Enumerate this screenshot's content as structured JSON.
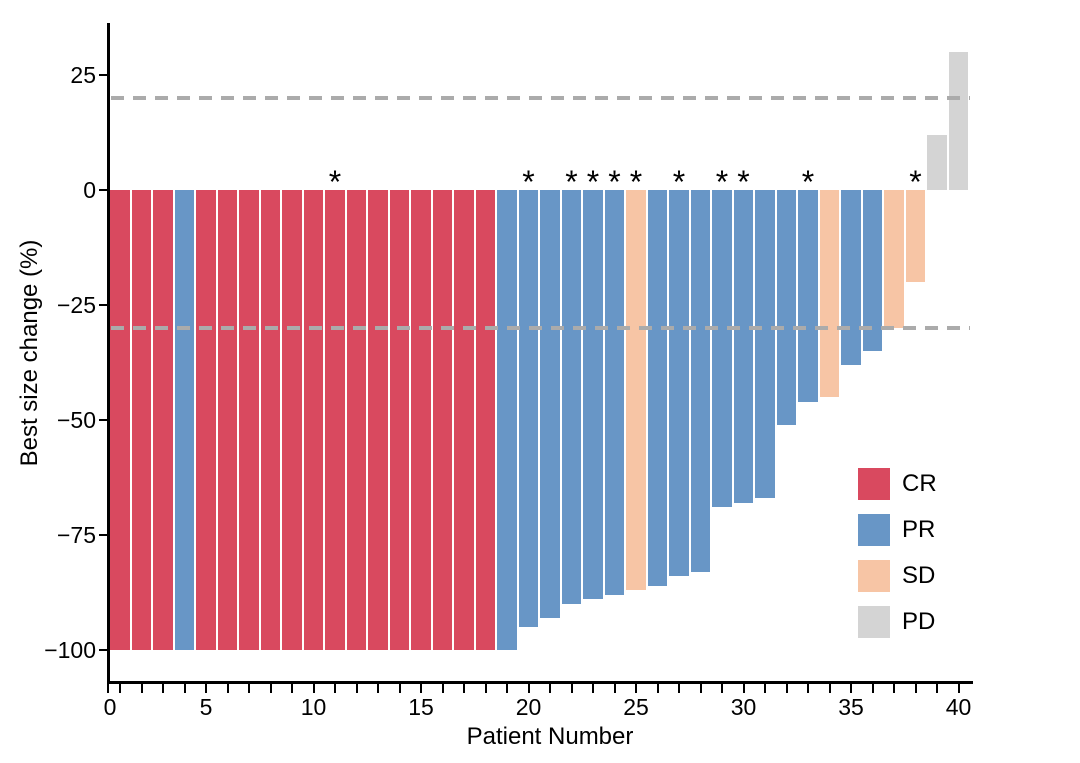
{
  "chart_data": {
    "type": "bar",
    "subtype": "waterfall",
    "title": "",
    "xlabel": "Patient Number",
    "ylabel": "Best size change (%)",
    "xlim": [
      0,
      40.5
    ],
    "ylim": [
      -107,
      36
    ],
    "grid": false,
    "legend_position": "right-middle",
    "y_ticks": [
      {
        "value": 25,
        "label": "25"
      },
      {
        "value": 0,
        "label": "0"
      },
      {
        "value": -25,
        "label": "−25"
      },
      {
        "value": -50,
        "label": "−50"
      },
      {
        "value": -75,
        "label": "−75"
      },
      {
        "value": -100,
        "label": "−100"
      }
    ],
    "x_major_ticks": [
      {
        "value": 0,
        "label": "0"
      },
      {
        "value": 5,
        "label": "5"
      },
      {
        "value": 10,
        "label": "10"
      },
      {
        "value": 15,
        "label": "15"
      },
      {
        "value": 20,
        "label": "20"
      },
      {
        "value": 25,
        "label": "25"
      },
      {
        "value": 30,
        "label": "30"
      },
      {
        "value": 35,
        "label": "35"
      },
      {
        "value": 40,
        "label": "40"
      }
    ],
    "x_minor_tick_step": 1,
    "reference_lines": [
      {
        "value": 20,
        "style": "dashed",
        "color": "#ABABAB"
      },
      {
        "value": -30,
        "style": "dashed",
        "color": "#ABABAB"
      }
    ],
    "legend": [
      {
        "key": "CR",
        "label": "CR",
        "color": "#D9495F"
      },
      {
        "key": "PR",
        "label": "PR",
        "color": "#6896C6"
      },
      {
        "key": "SD",
        "label": "SD",
        "color": "#F7C5A5"
      },
      {
        "key": "PD",
        "label": "PD",
        "color": "#D4D4D4"
      }
    ],
    "colors": {
      "CR": "#D9495F",
      "PR": "#6896C6",
      "SD": "#F7C5A5",
      "PD": "#D4D4D4",
      "reference_line": "#ABABAB",
      "axis": "#000000",
      "star_marker": "#000000"
    },
    "star_marker_glyph": "*",
    "patients": [
      {
        "id": 1,
        "change": -100,
        "response": "CR",
        "star": false
      },
      {
        "id": 2,
        "change": -100,
        "response": "CR",
        "star": false
      },
      {
        "id": 3,
        "change": -100,
        "response": "CR",
        "star": false
      },
      {
        "id": 4,
        "change": -100,
        "response": "PR",
        "star": false
      },
      {
        "id": 5,
        "change": -100,
        "response": "CR",
        "star": false
      },
      {
        "id": 6,
        "change": -100,
        "response": "CR",
        "star": false
      },
      {
        "id": 7,
        "change": -100,
        "response": "CR",
        "star": false
      },
      {
        "id": 8,
        "change": -100,
        "response": "CR",
        "star": false
      },
      {
        "id": 9,
        "change": -100,
        "response": "CR",
        "star": false
      },
      {
        "id": 10,
        "change": -100,
        "response": "CR",
        "star": false
      },
      {
        "id": 11,
        "change": -100,
        "response": "CR",
        "star": true
      },
      {
        "id": 12,
        "change": -100,
        "response": "CR",
        "star": false
      },
      {
        "id": 13,
        "change": -100,
        "response": "CR",
        "star": false
      },
      {
        "id": 14,
        "change": -100,
        "response": "CR",
        "star": false
      },
      {
        "id": 15,
        "change": -100,
        "response": "CR",
        "star": false
      },
      {
        "id": 16,
        "change": -100,
        "response": "CR",
        "star": false
      },
      {
        "id": 17,
        "change": -100,
        "response": "CR",
        "star": false
      },
      {
        "id": 18,
        "change": -100,
        "response": "CR",
        "star": false
      },
      {
        "id": 19,
        "change": -100,
        "response": "PR",
        "star": false
      },
      {
        "id": 20,
        "change": -95,
        "response": "PR",
        "star": true
      },
      {
        "id": 21,
        "change": -93,
        "response": "PR",
        "star": false
      },
      {
        "id": 22,
        "change": -90,
        "response": "PR",
        "star": true
      },
      {
        "id": 23,
        "change": -89,
        "response": "PR",
        "star": true
      },
      {
        "id": 24,
        "change": -88,
        "response": "PR",
        "star": true
      },
      {
        "id": 25,
        "change": -87,
        "response": "SD",
        "star": true
      },
      {
        "id": 26,
        "change": -86,
        "response": "PR",
        "star": false
      },
      {
        "id": 27,
        "change": -84,
        "response": "PR",
        "star": true
      },
      {
        "id": 28,
        "change": -83,
        "response": "PR",
        "star": false
      },
      {
        "id": 29,
        "change": -69,
        "response": "PR",
        "star": true
      },
      {
        "id": 30,
        "change": -68,
        "response": "PR",
        "star": true
      },
      {
        "id": 31,
        "change": -67,
        "response": "PR",
        "star": false
      },
      {
        "id": 32,
        "change": -51,
        "response": "PR",
        "star": false
      },
      {
        "id": 33,
        "change": -46,
        "response": "PR",
        "star": true
      },
      {
        "id": 34,
        "change": -45,
        "response": "SD",
        "star": false
      },
      {
        "id": 35,
        "change": -38,
        "response": "PR",
        "star": false
      },
      {
        "id": 36,
        "change": -35,
        "response": "PR",
        "star": false
      },
      {
        "id": 37,
        "change": -30,
        "response": "SD",
        "star": false
      },
      {
        "id": 38,
        "change": -20,
        "response": "SD",
        "star": true
      },
      {
        "id": 39,
        "change": 12,
        "response": "PD",
        "star": false
      },
      {
        "id": 40,
        "change": 30,
        "response": "PD",
        "star": false
      }
    ]
  }
}
